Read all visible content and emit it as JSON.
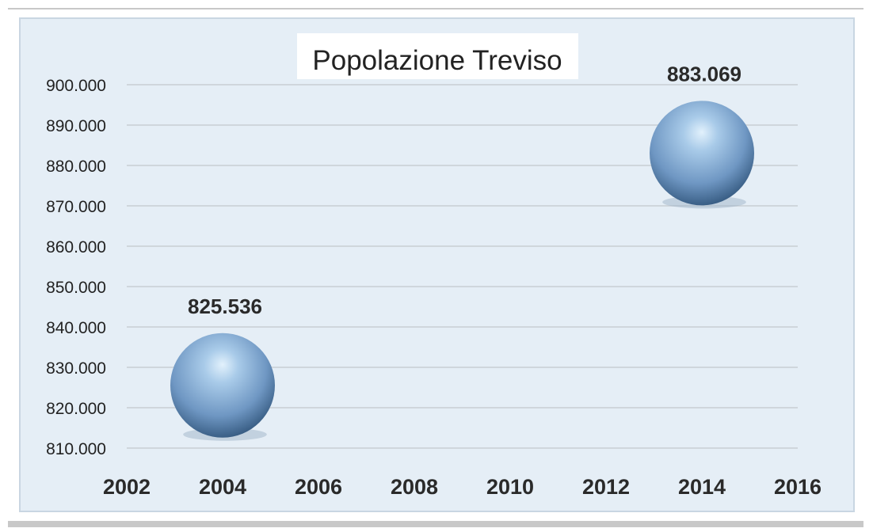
{
  "chart_data": {
    "type": "scatter",
    "title": "Popolazione Treviso",
    "xlabel": "",
    "ylabel": "",
    "xlim": [
      2002,
      2016
    ],
    "ylim": [
      810000,
      900000
    ],
    "x_ticks": [
      2002,
      2004,
      2006,
      2008,
      2010,
      2012,
      2014,
      2016
    ],
    "x_tick_labels": [
      "2002",
      "2004",
      "2006",
      "2008",
      "2010",
      "2012",
      "2014",
      "2016"
    ],
    "y_ticks": [
      810000,
      820000,
      830000,
      840000,
      850000,
      860000,
      870000,
      880000,
      890000,
      900000
    ],
    "y_tick_labels": [
      "810.000",
      "820.000",
      "830.000",
      "840.000",
      "850.000",
      "860.000",
      "870.000",
      "880.000",
      "890.000",
      "900.000"
    ],
    "grid": true,
    "points": [
      {
        "x": 2004,
        "y": 825536,
        "label": "825.536"
      },
      {
        "x": 2014,
        "y": 883069,
        "label": "883.069"
      }
    ],
    "colors": {
      "bubble": "#7aa3cf",
      "bubble_highlight": "#cfe4f6",
      "bubble_shadow": "#3a5f86",
      "background": "#e5eef6",
      "grid": "#cfd6dc"
    }
  }
}
